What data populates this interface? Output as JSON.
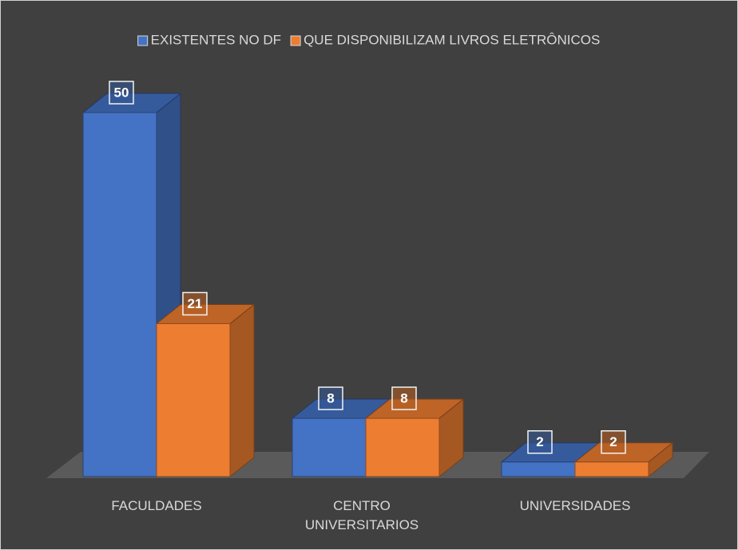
{
  "chart_data": {
    "type": "bar3d",
    "categories": [
      "FACULDADES",
      "CENTRO UNIVERSITARIOS",
      "UNIVERSIDADES"
    ],
    "series": [
      {
        "name": "EXISTENTES NO DF",
        "color": "#4472c4",
        "values": [
          50,
          8,
          2
        ]
      },
      {
        "name": "QUE DISPONIBILIZAM LIVROS ELETRÔNICOS",
        "color": "#ed7d31",
        "values": [
          21,
          8,
          2
        ]
      }
    ],
    "legend": "top"
  }
}
